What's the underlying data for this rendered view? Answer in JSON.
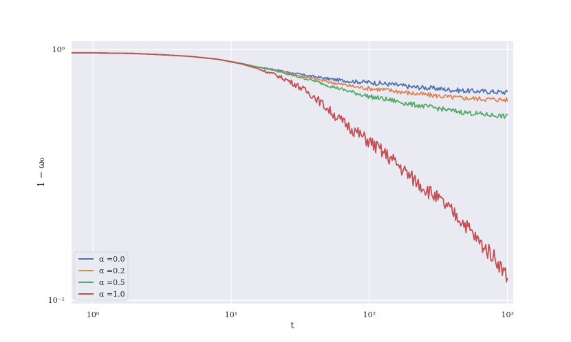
{
  "chart_data": {
    "type": "line",
    "title": "",
    "xlabel": "t",
    "ylabel": "1 − ω₀",
    "xscale": "log",
    "yscale": "log",
    "xlim": [
      0.7,
      1100
    ],
    "ylim": [
      0.097,
      1.08
    ],
    "grid": true,
    "legend_position": "lower-left",
    "background": "#eaeaf2",
    "x_ticks": [
      {
        "value": 1,
        "label": "10⁰"
      },
      {
        "value": 10,
        "label": "10¹"
      },
      {
        "value": 100,
        "label": "10²"
      },
      {
        "value": 1000,
        "label": "10³"
      }
    ],
    "y_ticks": [
      {
        "value": 0.1,
        "label": "10⁻¹"
      },
      {
        "value": 1,
        "label": "10⁰"
      }
    ],
    "series": [
      {
        "name": "α =0.0",
        "color": "#4c72b0",
        "x": [
          0.7,
          1,
          2,
          3,
          5,
          8,
          12,
          15,
          20,
          25,
          30,
          40,
          50,
          60,
          80,
          100,
          150,
          200,
          300,
          400,
          500,
          700,
          1000
        ],
        "y": [
          0.97,
          0.97,
          0.965,
          0.955,
          0.94,
          0.915,
          0.88,
          0.855,
          0.835,
          0.815,
          0.8,
          0.78,
          0.765,
          0.755,
          0.745,
          0.74,
          0.725,
          0.71,
          0.7,
          0.69,
          0.685,
          0.68,
          0.675
        ]
      },
      {
        "name": "α =0.2",
        "color": "#dd8452",
        "x": [
          0.7,
          1,
          2,
          3,
          5,
          8,
          12,
          15,
          20,
          25,
          30,
          40,
          50,
          60,
          80,
          100,
          150,
          200,
          300,
          400,
          500,
          700,
          1000
        ],
        "y": [
          0.97,
          0.97,
          0.965,
          0.955,
          0.94,
          0.915,
          0.88,
          0.855,
          0.83,
          0.81,
          0.79,
          0.765,
          0.745,
          0.73,
          0.71,
          0.7,
          0.685,
          0.67,
          0.655,
          0.645,
          0.64,
          0.635,
          0.63
        ]
      },
      {
        "name": "α =0.5",
        "color": "#55a868",
        "x": [
          0.7,
          1,
          2,
          3,
          5,
          8,
          12,
          15,
          20,
          25,
          30,
          40,
          50,
          60,
          80,
          100,
          150,
          200,
          300,
          400,
          500,
          700,
          1000
        ],
        "y": [
          0.97,
          0.97,
          0.965,
          0.955,
          0.94,
          0.915,
          0.88,
          0.855,
          0.83,
          0.8,
          0.78,
          0.75,
          0.72,
          0.7,
          0.67,
          0.65,
          0.625,
          0.605,
          0.585,
          0.57,
          0.56,
          0.55,
          0.54
        ]
      },
      {
        "name": "α =1.0",
        "color": "#c44e52",
        "x": [
          0.7,
          1,
          2,
          3,
          5,
          8,
          12,
          15,
          20,
          25,
          30,
          40,
          50,
          60,
          80,
          100,
          150,
          200,
          300,
          400,
          500,
          600,
          700,
          800,
          900,
          1000
        ],
        "y": [
          0.97,
          0.97,
          0.965,
          0.955,
          0.94,
          0.915,
          0.875,
          0.845,
          0.8,
          0.76,
          0.72,
          0.65,
          0.58,
          0.53,
          0.47,
          0.43,
          0.36,
          0.31,
          0.26,
          0.225,
          0.2,
          0.175,
          0.16,
          0.15,
          0.135,
          0.125
        ]
      }
    ]
  }
}
